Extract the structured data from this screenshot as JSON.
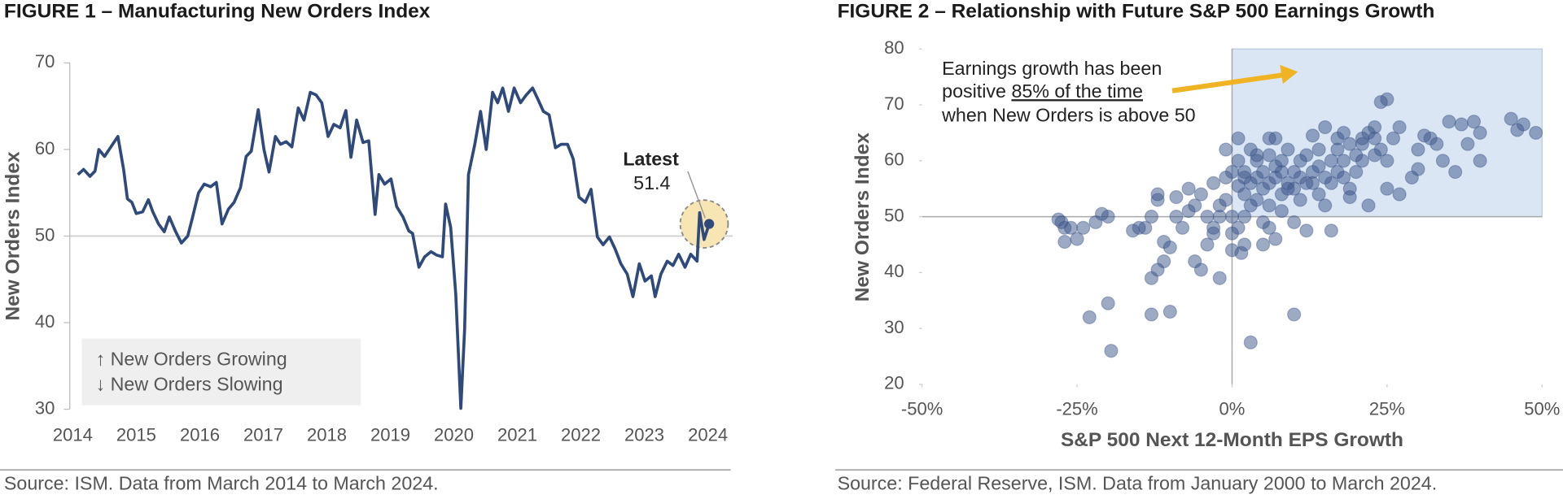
{
  "chart_data": [
    {
      "type": "line",
      "title": "FIGURE 1 – Manufacturing New Orders Index",
      "y_label": "New Orders Index",
      "source": "Source: ISM. Data from March 2014 to March 2024.",
      "x": [
        2014.08,
        2014.17,
        2014.27,
        2014.35,
        2014.41,
        2014.5,
        2014.6,
        2014.71,
        2014.8,
        2014.86,
        2014.93,
        2015.0,
        2015.1,
        2015.19,
        2015.26,
        2015.35,
        2015.44,
        2015.52,
        2015.62,
        2015.71,
        2015.81,
        2015.88,
        2015.98,
        2016.07,
        2016.17,
        2016.26,
        2016.35,
        2016.45,
        2016.54,
        2016.64,
        2016.73,
        2016.81,
        2016.92,
        2017.01,
        2017.09,
        2017.19,
        2017.27,
        2017.36,
        2017.45,
        2017.55,
        2017.64,
        2017.74,
        2017.83,
        2017.92,
        2018.02,
        2018.11,
        2018.21,
        2018.3,
        2018.38,
        2018.47,
        2018.57,
        2018.66,
        2018.76,
        2018.82,
        2018.91,
        2019.01,
        2019.1,
        2019.2,
        2019.29,
        2019.35,
        2019.45,
        2019.54,
        2019.64,
        2019.73,
        2019.82,
        2019.87,
        2019.95,
        2020.03,
        2020.11,
        2020.17,
        2020.23,
        2020.33,
        2020.42,
        2020.51,
        2020.61,
        2020.69,
        2020.77,
        2020.86,
        2020.95,
        2021.05,
        2021.14,
        2021.24,
        2021.33,
        2021.41,
        2021.5,
        2021.6,
        2021.69,
        2021.79,
        2021.88,
        2021.97,
        2022.07,
        2022.16,
        2022.26,
        2022.35,
        2022.45,
        2022.54,
        2022.63,
        2022.73,
        2022.82,
        2022.92,
        2023.01,
        2023.11,
        2023.17,
        2023.26,
        2023.36,
        2023.45,
        2023.54,
        2023.64,
        2023.73,
        2023.83,
        2023.87,
        2023.94,
        2024.02
      ],
      "values": [
        57.1,
        57.7,
        56.9,
        57.5,
        60,
        59.2,
        60.3,
        61.5,
        57.7,
        54.3,
        53.9,
        52.6,
        52.8,
        54.2,
        52.8,
        51.4,
        50.5,
        52.2,
        50.5,
        49.2,
        50,
        52,
        55,
        56,
        55.7,
        56.2,
        51.4,
        53.1,
        53.9,
        55.6,
        59.2,
        59.8,
        64.6,
        60,
        57.4,
        61.5,
        60.6,
        60.9,
        60.3,
        64.8,
        63.4,
        66.6,
        66.3,
        65.4,
        61.5,
        62.9,
        62.5,
        64.5,
        59.1,
        63.4,
        60.8,
        61,
        52.5,
        57.1,
        56,
        56.6,
        53.4,
        52.2,
        50.6,
        50.3,
        46.4,
        47.6,
        48.2,
        47.8,
        47.6,
        53.7,
        51,
        43.3,
        30.1,
        39.3,
        57.1,
        60.6,
        64.4,
        60,
        66.6,
        65.4,
        67.1,
        64.4,
        67.1,
        65.4,
        66.3,
        67.1,
        65.7,
        64.4,
        64,
        60.2,
        60.6,
        60.6,
        58.9,
        54.5,
        53.9,
        55.4,
        49.9,
        49,
        49.9,
        48.5,
        46.8,
        45.6,
        43,
        46.8,
        44.8,
        45.4,
        43,
        45.6,
        47.1,
        46.6,
        47.9,
        46.4,
        47.9,
        47.1,
        52.7,
        49.6,
        51.4
      ],
      "color": "#2f4a7a",
      "xlim": [
        2013.874,
        2024.39
      ],
      "xticks": [
        2014,
        2015,
        2016,
        2017,
        2018,
        2019,
        2020,
        2021,
        2022,
        2023,
        2024
      ],
      "ylim": [
        30,
        70
      ],
      "yticks": [
        30,
        40,
        50,
        60,
        70
      ],
      "reference_y": 50,
      "legend_box": [
        "↑ New Orders Growing",
        "↓ New Orders Slowing"
      ],
      "latest_label": "Latest",
      "latest_value": 51.4,
      "highlight_color": "#f7e6b4"
    },
    {
      "type": "scatter",
      "title": "FIGURE 2 – Relationship with Future S&P 500 Earnings Growth",
      "y_label": "New Orders Index",
      "x_label": "S&P 500 Next 12-Month EPS Growth",
      "source": "Source: Federal Reserve, ISM. Data from January 2000 to March 2024.",
      "x": [
        -27.5,
        -27,
        -27,
        -26,
        -25,
        -22,
        -21,
        -20,
        -20,
        -23,
        -19.5,
        -15,
        -14,
        -13,
        -12,
        -12,
        -13,
        -12,
        -11,
        -13,
        -10,
        -11,
        -10,
        -9,
        -8,
        -7,
        -6,
        -6,
        -5,
        -5,
        -4,
        -3,
        -3,
        -2,
        -1,
        -1,
        -2,
        -2,
        -1,
        0,
        0,
        0,
        1,
        1,
        1,
        1.5,
        2,
        2,
        2,
        2,
        3,
        3,
        3,
        3,
        4,
        4,
        4,
        5,
        5,
        5,
        5,
        6,
        6,
        6,
        6,
        7,
        7,
        7,
        7,
        8,
        8,
        8,
        8,
        9,
        9,
        9,
        10,
        10,
        10,
        10,
        11,
        11,
        11,
        12,
        12,
        13,
        13,
        13,
        14,
        14,
        14,
        15,
        15,
        15,
        16,
        16,
        16,
        17,
        17,
        17,
        18,
        18,
        19,
        19,
        19,
        20,
        20,
        21,
        21,
        22,
        22,
        23,
        23,
        24,
        24,
        25,
        25,
        25,
        26,
        27,
        27,
        29,
        30,
        30,
        31,
        32,
        33,
        34,
        35,
        36,
        37,
        38,
        39,
        40,
        40,
        45,
        46,
        47,
        49,
        -28,
        -24,
        -16,
        -9,
        -7,
        -4,
        -3,
        0,
        1,
        2,
        4,
        6,
        12,
        18,
        21,
        23
      ],
      "values": [
        49,
        48,
        45.5,
        48,
        46,
        49,
        50.5,
        50,
        34.5,
        32,
        26,
        48,
        48,
        50,
        53,
        54,
        39,
        40.5,
        42,
        32.5,
        33,
        45.5,
        44.5,
        50,
        48,
        55,
        52,
        42,
        40.5,
        54,
        50,
        48,
        56,
        52,
        53,
        62,
        50,
        39,
        57,
        50,
        47,
        44,
        55.5,
        60,
        64,
        43.5,
        58,
        50,
        57,
        54,
        56,
        62,
        27.5,
        52,
        60,
        53,
        57,
        58,
        55,
        49,
        45,
        56,
        61,
        52,
        48,
        57,
        59,
        64,
        46,
        54,
        58,
        60,
        51,
        56,
        62,
        55,
        55,
        49,
        58,
        32.5,
        57,
        60,
        53,
        56,
        61,
        56,
        58,
        64.5,
        62,
        59,
        54,
        66,
        57,
        52,
        60,
        56,
        47.5,
        58,
        62,
        64,
        57,
        60,
        63,
        55,
        53.5,
        61,
        58,
        64,
        60,
        65,
        52,
        66,
        61,
        62,
        70.5,
        71,
        60,
        55,
        64,
        66,
        54,
        57,
        58.5,
        62,
        64.5,
        64,
        63,
        60,
        67,
        58,
        66.5,
        63,
        67,
        65,
        60,
        67.5,
        65.5,
        66.5,
        65,
        49.5,
        48,
        47.5,
        53.5,
        51,
        45,
        47,
        58,
        48,
        45,
        61,
        64,
        47.5,
        65,
        63,
        64
      ],
      "color": "#3b5689",
      "xlim": [
        -50,
        50
      ],
      "xticks": [
        {
          "value": -50,
          "label": "-50%"
        },
        {
          "value": -25,
          "label": "-25%"
        },
        {
          "value": 0,
          "label": "0%"
        },
        {
          "value": 25,
          "label": "25%"
        },
        {
          "value": 50,
          "label": "50%"
        }
      ],
      "ylim": [
        20,
        80
      ],
      "yticks": [
        20,
        30,
        40,
        50,
        60,
        70,
        80
      ],
      "reference_x": 0,
      "reference_y": 50,
      "shade_color": "#dbe6f4",
      "arrow_color": "#f0b323",
      "annotation": [
        "Earnings growth has been",
        "positive ",
        "85% of the time",
        "when New Orders is above 50"
      ]
    }
  ]
}
